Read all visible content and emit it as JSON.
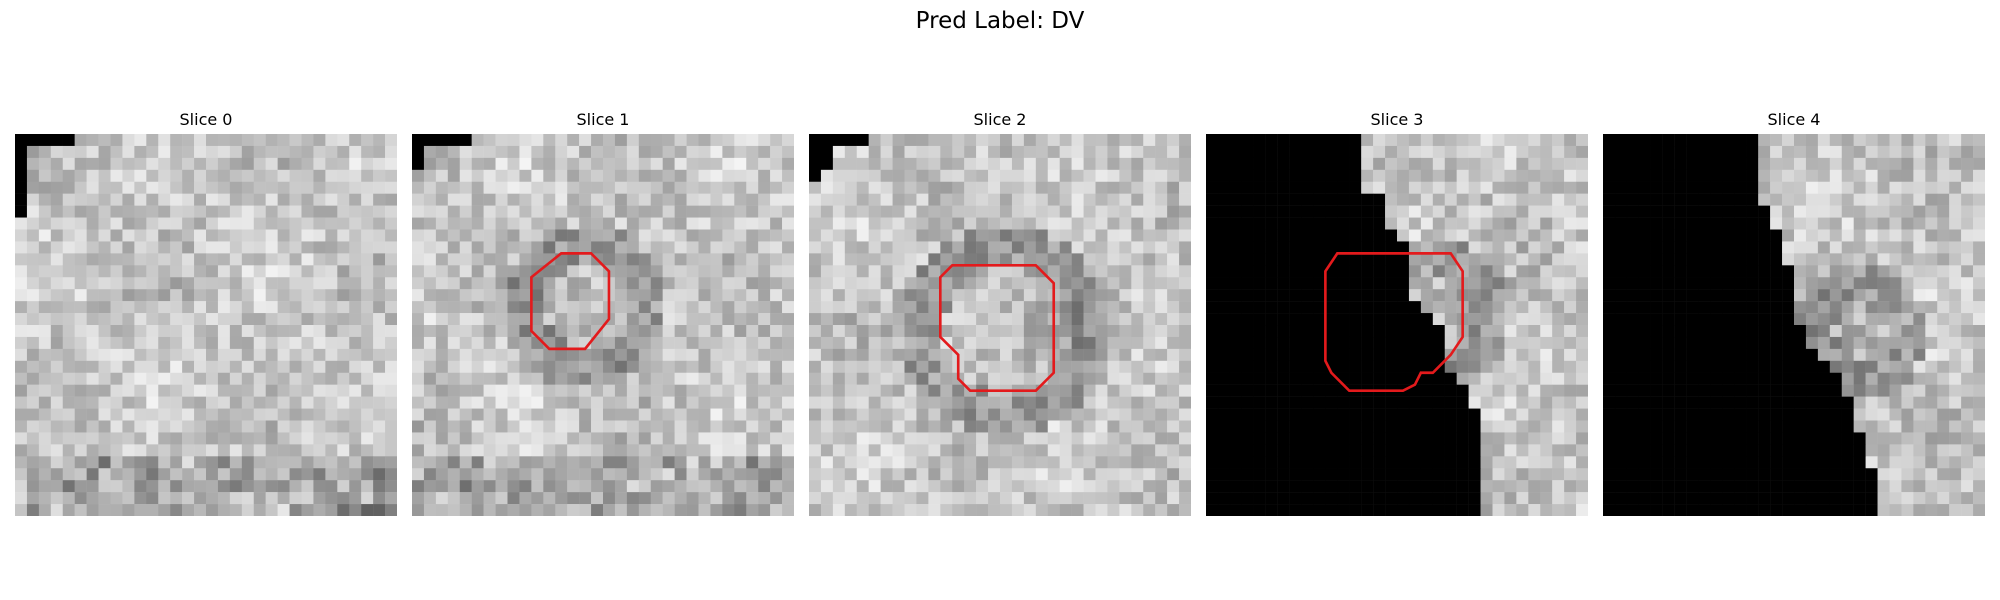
{
  "figure": {
    "title": "Pred Label: DV",
    "contour_color": "#e31a1c",
    "slices": [
      {
        "title": "Slice 0",
        "seed": 11,
        "has_contour": false
      },
      {
        "title": "Slice 1",
        "seed": 23,
        "has_contour": true
      },
      {
        "title": "Slice 2",
        "seed": 37,
        "has_contour": true
      },
      {
        "title": "Slice 3",
        "seed": 51,
        "has_contour": true
      },
      {
        "title": "Slice 4",
        "seed": 67,
        "has_contour": false
      }
    ]
  }
}
